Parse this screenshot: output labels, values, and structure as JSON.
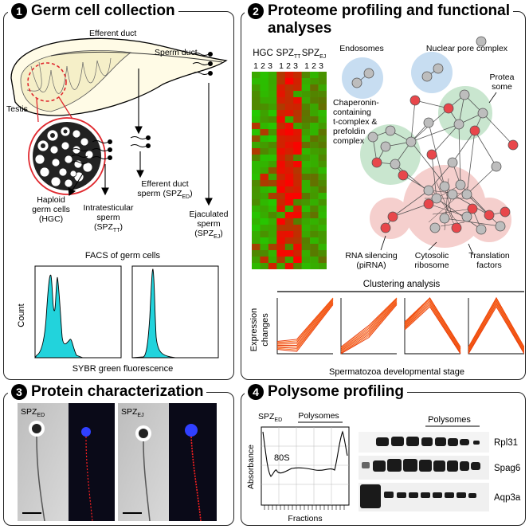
{
  "panels": {
    "p1": {
      "num": "1",
      "title": "Germ cell collection"
    },
    "p2": {
      "num": "2",
      "title_line1": "Proteome profiling and functional",
      "title_line2": "analyses"
    },
    "p3": {
      "num": "3",
      "title": "Protein characterization"
    },
    "p4": {
      "num": "4",
      "title": "Polysome profiling"
    }
  },
  "collection": {
    "efferent_duct": "Efferent duct",
    "sperm_duct": "Sperm duct",
    "testis": "Testis",
    "haploid_l1": "Haploid",
    "haploid_l2": "germ cells",
    "haploid_l3": "(HGC)",
    "intra_l1": "Intratesticular",
    "intra_l2": "sperm",
    "intra_l3": "(SPZ",
    "intra_sub": "TT",
    "effsperm_l1": "Efferent duct",
    "effsperm_l2": "sperm (SPZ",
    "effsperm_sub": "ED",
    "ejac_l1": "Ejaculated",
    "ejac_l2": "sperm",
    "ejac_l3": "(SPZ",
    "ejac_sub": "EJ",
    "facs_title": "FACS of germ cells",
    "facs_ylabel": "Count",
    "facs_xlabel": "SYBR green fluorescence",
    "colors": {
      "facs_fill": "#22d3dc",
      "circle": "#e0282e"
    }
  },
  "proteome": {
    "heatmap": {
      "groups": [
        {
          "label": "HGC",
          "sub": ""
        },
        {
          "label": "SPZ",
          "sub": "TT"
        },
        {
          "label": "SPZ",
          "sub": "EJ"
        }
      ],
      "replicates": [
        "1",
        "2",
        "3"
      ]
    },
    "network_labels": {
      "endosomes": "Endosomes",
      "npc": "Nuclear pore complex",
      "protea_l1": "Protea",
      "protea_l2": "some",
      "chap_l1": "Chaperonin-",
      "chap_l2": "containing",
      "chap_l3": "t-complex &",
      "chap_l4": "prefoldin",
      "chap_l5": "complex",
      "rna_l1": "RNA silencing",
      "rna_l2": "(piRNA)",
      "cyto_l1": "Cytosolic",
      "cyto_l2": "ribosome",
      "trans_l1": "Translation",
      "trans_l2": "factors"
    },
    "clustering": {
      "title": "Clustering analysis",
      "ylabel_l1": "Expression",
      "ylabel_l2": "changes",
      "xlabel": "Spermatozoa developmental stage"
    }
  },
  "characterization": {
    "left_label": "SPZ",
    "left_sub": "ED",
    "right_label": "SPZ",
    "right_sub": "EJ"
  },
  "polysome": {
    "spz_label": "SPZ",
    "spz_sub": "ED",
    "polysomes_label": "Polysomes",
    "peak_label": "80S",
    "ylabel": "Absorbance",
    "xlabel": "Fractions",
    "blot_header": "Polysomes",
    "blots": [
      "Rpl31",
      "Spag6",
      "Aqp3a"
    ]
  }
}
